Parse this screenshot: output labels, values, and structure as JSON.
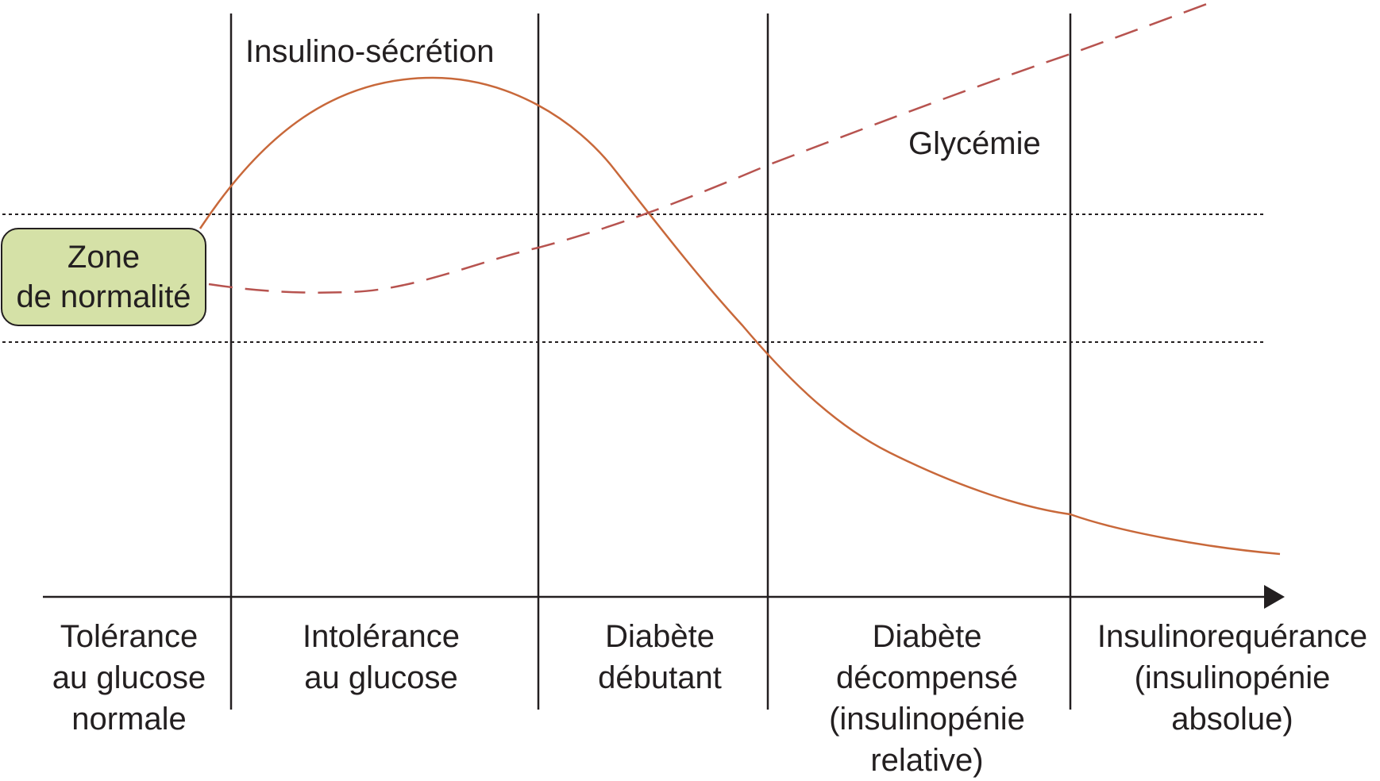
{
  "diagram": {
    "curves": {
      "insulin_label": "Insulino-sécrétion",
      "glycemia_label": "Glycémie"
    },
    "normal_zone": {
      "lines": [
        "Zone",
        "de normalité"
      ],
      "fill_color": "#d5e1a7"
    },
    "stages": [
      {
        "lines": [
          "Tolérance",
          "au glucose",
          "normale"
        ]
      },
      {
        "lines": [
          "Intolérance",
          "au glucose"
        ]
      },
      {
        "lines": [
          "Diabète",
          "débutant"
        ]
      },
      {
        "lines": [
          "Diabète",
          "décompensé",
          "(insulinopénie",
          "relative)"
        ]
      },
      {
        "lines": [
          "Insulinorequérance",
          "(insulinopénie",
          "absolue)"
        ]
      }
    ],
    "colors": {
      "insulin_curve": "#c8683a",
      "glycemia_curve": "#b7534f",
      "axis": "#231f20"
    }
  }
}
